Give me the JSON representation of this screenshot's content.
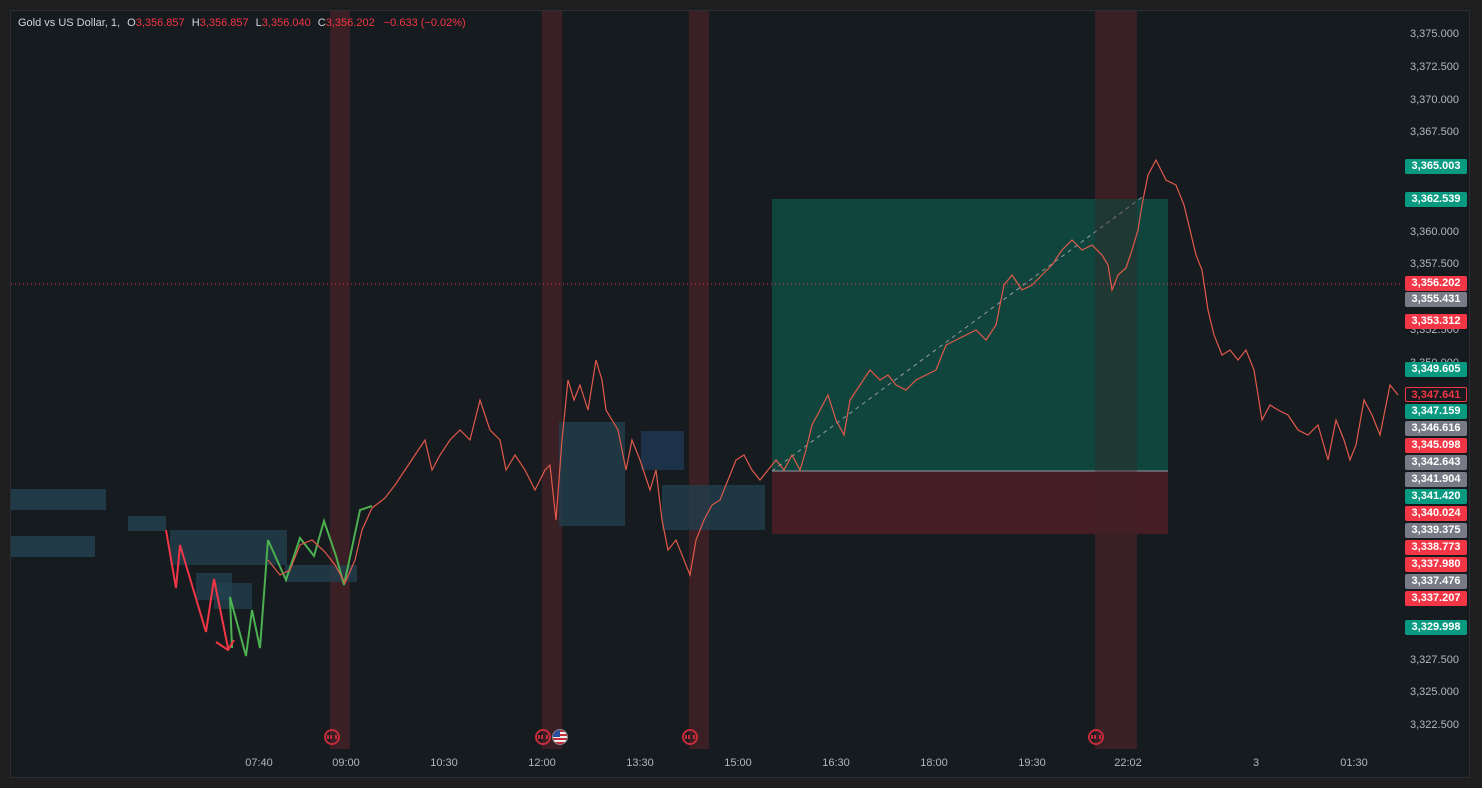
{
  "legend": {
    "symbol": "Gold vs US Dollar, 1,",
    "open_label": "O",
    "open": "3,356.857",
    "high_label": "H",
    "high": "3,356.857",
    "low_label": "L",
    "low": "3,356.040",
    "close_label": "C",
    "close": "3,356.202",
    "change": "−0.633 (−0.02%)"
  },
  "price_axis": {
    "labels": [
      "3,375.000",
      "3,372.500",
      "3,370.000",
      "3,367.500",
      "3,360.000",
      "3,357.500",
      "3,352.500",
      "3,350.000",
      "3,327.500",
      "3,325.000",
      "3,322.500"
    ]
  },
  "price_tags": [
    {
      "text": "3,365.003",
      "color": "#089981"
    },
    {
      "text": "3,362.539",
      "color": "#089981"
    },
    {
      "text": "3,356.202",
      "color": "#f23645"
    },
    {
      "text": "3,355.431",
      "color": "#787b86"
    },
    {
      "text": "3,353.312",
      "color": "#f23645"
    },
    {
      "text": "3,349.605",
      "color": "#089981"
    },
    {
      "text": "3,347.641",
      "color": "#f23645",
      "outline": true
    },
    {
      "text": "3,347.159",
      "color": "#089981"
    },
    {
      "text": "3,346.616",
      "color": "#787b86"
    },
    {
      "text": "3,345.098",
      "color": "#f23645"
    },
    {
      "text": "3,342.643",
      "color": "#787b86"
    },
    {
      "text": "3,341.904",
      "color": "#787b86"
    },
    {
      "text": "3,341.420",
      "color": "#089981"
    },
    {
      "text": "3,340.024",
      "color": "#f23645"
    },
    {
      "text": "3,339.375",
      "color": "#787b86"
    },
    {
      "text": "3,338.773",
      "color": "#f23645"
    },
    {
      "text": "3,337.980",
      "color": "#f23645"
    },
    {
      "text": "3,337.476",
      "color": "#787b86"
    },
    {
      "text": "3,337.207",
      "color": "#f23645"
    },
    {
      "text": "3,329.998",
      "color": "#089981"
    }
  ],
  "time_axis": {
    "labels": [
      "07:40",
      "09:00",
      "10:30",
      "12:00",
      "13:30",
      "15:00",
      "16:30",
      "18:00",
      "19:30",
      "22:02",
      "3",
      "01:30"
    ]
  },
  "colors": {
    "up": "#089981",
    "down": "#f23645",
    "background": "#161b20",
    "session_band": "#3a1f24",
    "profit_zone": "#0f4a40",
    "loss_zone": "#4a1f26"
  },
  "icons": {
    "event": "economic-event-icon",
    "flag": "us-flag-icon"
  }
}
